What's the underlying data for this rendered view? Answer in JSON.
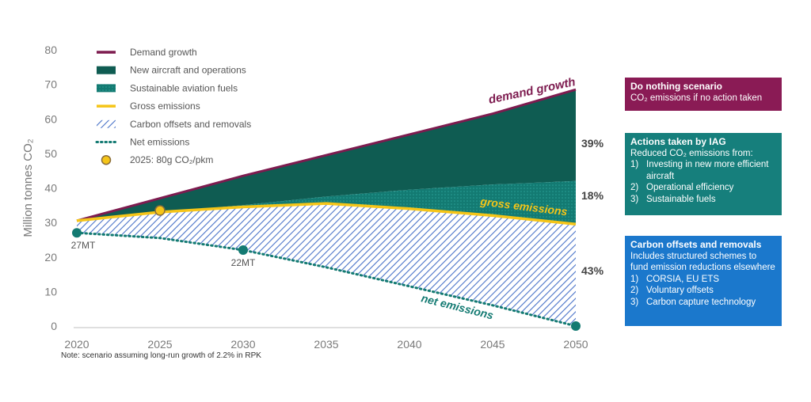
{
  "chart_data": {
    "type": "area",
    "ylabel": "Million tonnes CO₂",
    "ylim": [
      0,
      80
    ],
    "xlim": [
      2020,
      2050
    ],
    "yticks": [
      0,
      10,
      20,
      30,
      40,
      50,
      60,
      70,
      80
    ],
    "xticks": [
      2020,
      2025,
      2030,
      2035,
      2040,
      2045,
      2050
    ],
    "legend": [
      {
        "label": "Demand growth",
        "kind": "line",
        "color": "#7d1b4f"
      },
      {
        "label": "New aircraft and operations",
        "kind": "fill",
        "color": "#0f5c52"
      },
      {
        "label": "Sustainable aviation fuels",
        "kind": "dotted-fill",
        "color": "#137a72"
      },
      {
        "label": "Gross emissions",
        "kind": "line",
        "color": "#f5c518"
      },
      {
        "label": "Carbon offsets and removals",
        "kind": "hatch",
        "color": "#4a73c8"
      },
      {
        "label": "Net emissions",
        "kind": "dotted-line",
        "color": "#137a72"
      },
      {
        "label": "2025: 80g CO₂/pkm",
        "kind": "marker",
        "color": "#f5c518"
      }
    ],
    "series": [
      {
        "name": "Demand growth",
        "x": [
          2020,
          2025,
          2030,
          2035,
          2040,
          2045,
          2050
        ],
        "values": [
          30.5,
          37,
          43.5,
          49.5,
          55.5,
          61.5,
          68.5
        ]
      },
      {
        "name": "New aircraft and operations",
        "x": [
          2020,
          2025,
          2030,
          2035,
          2040,
          2045,
          2050
        ],
        "values": [
          30.5,
          33,
          35,
          37.5,
          39.5,
          41,
          42
        ]
      },
      {
        "name": "Gross emissions",
        "x": [
          2020,
          2025,
          2030,
          2035,
          2040,
          2045,
          2050
        ],
        "values": [
          30.5,
          33,
          34.5,
          35.5,
          34,
          32,
          29.5
        ]
      },
      {
        "name": "Net emissions",
        "x": [
          2020,
          2025,
          2030,
          2035,
          2040,
          2045,
          2050
        ],
        "values": [
          27,
          25.5,
          22,
          17,
          11.5,
          6,
          0
        ]
      }
    ],
    "markers": [
      {
        "x": 2020,
        "y": 27,
        "label": "27MT"
      },
      {
        "x": 2030,
        "y": 22,
        "label": "22MT"
      },
      {
        "x": 2050,
        "y": 0,
        "label": ""
      }
    ],
    "highlight_marker": {
      "x": 2025,
      "y": 33
    },
    "annotations": {
      "demand": "demand growth",
      "gross": "gross emissions",
      "net": "net emissions"
    },
    "percentages": [
      "39%",
      "18%",
      "43%"
    ]
  },
  "note": "Note: scenario assuming long-run growth of 2.2% in RPK",
  "boxes": {
    "do_nothing": {
      "title": "Do nothing scenario",
      "sub": "CO₂ emissions if no action taken"
    },
    "actions": {
      "title": "Actions taken by IAG",
      "sub": "Reduced CO₂ emissions from:",
      "items": [
        {
          "n": "1)",
          "t": "Investing in new more efficient aircraft"
        },
        {
          "n": "2)",
          "t": "Operational efficiency"
        },
        {
          "n": "3)",
          "t": "Sustainable fuels"
        }
      ]
    },
    "offsets": {
      "title": "Carbon offsets and removals",
      "sub": "Includes structured schemes to fund emission reductions elsewhere",
      "items": [
        {
          "n": "1)",
          "t": "CORSIA, EU ETS"
        },
        {
          "n": "2)",
          "t": "Voluntary offsets"
        },
        {
          "n": "3)",
          "t": "Carbon capture technology"
        }
      ]
    }
  }
}
